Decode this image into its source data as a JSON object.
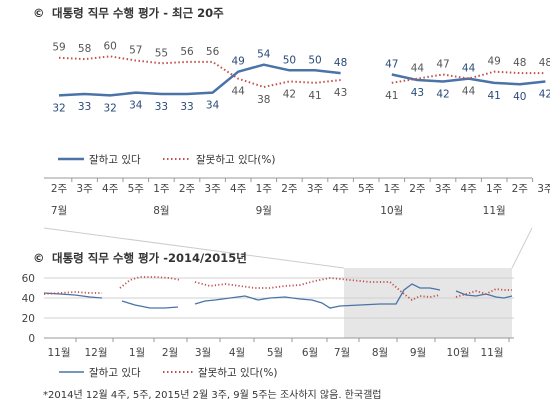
{
  "colors": {
    "approve": "#4a73a8",
    "disapprove": "#c0504d",
    "shade": "#e6e6e6"
  },
  "chart_data": [
    {
      "type": "line",
      "title": "대통령 직무 수행 평가 - 최근 20주",
      "title_icon": "©",
      "categories": [
        "2주",
        "3주",
        "4주",
        "5주",
        "1주",
        "2주",
        "3주",
        "4주",
        "1주",
        "2주",
        "3주",
        "4주",
        "5주",
        "1주",
        "2주",
        "3주",
        "4주",
        "1주",
        "2주",
        "3주"
      ],
      "month_labels": [
        {
          "label": "7월",
          "index": 0
        },
        {
          "label": "8월",
          "index": 4
        },
        {
          "label": "9월",
          "index": 8
        },
        {
          "label": "10월",
          "index": 13
        },
        {
          "label": "11월",
          "index": 17
        }
      ],
      "series": [
        {
          "name": "잘하고 있다",
          "style": "solid",
          "values": [
            32,
            33,
            32,
            34,
            33,
            33,
            34,
            49,
            54,
            50,
            50,
            48,
            null,
            47,
            43,
            42,
            44,
            41,
            40,
            42
          ]
        },
        {
          "name": "잘못하고 있다(%)",
          "style": "dotted",
          "values": [
            59,
            58,
            60,
            57,
            55,
            56,
            56,
            44,
            38,
            42,
            41,
            43,
            null,
            41,
            44,
            47,
            44,
            49,
            48,
            48
          ]
        }
      ],
      "legend_position": "bottom-left",
      "grid": false
    },
    {
      "type": "line",
      "title": "대통령 직무 수행 평가 -2014/2015년",
      "title_icon": "©",
      "y_ticks": [
        0,
        20,
        40,
        60
      ],
      "ylim": [
        0,
        70
      ],
      "x_labels": [
        "11월",
        "12월",
        "1월",
        "2월",
        "3월",
        "4월",
        "5월",
        "6월",
        "7월",
        "8월",
        "9월",
        "10월",
        "11월"
      ],
      "shaded_from": "7월",
      "series": [
        {
          "name": "잘하고 있다",
          "style": "solid"
        },
        {
          "name": "잘못하고 있다(%)",
          "style": "dotted"
        }
      ],
      "legend_position": "bottom-left",
      "grid": true
    }
  ],
  "footnote": "*2014년 12월 4주, 5주, 2015년 2월 3주, 9월 5주는 조사하지 않음. 한국갤럽"
}
